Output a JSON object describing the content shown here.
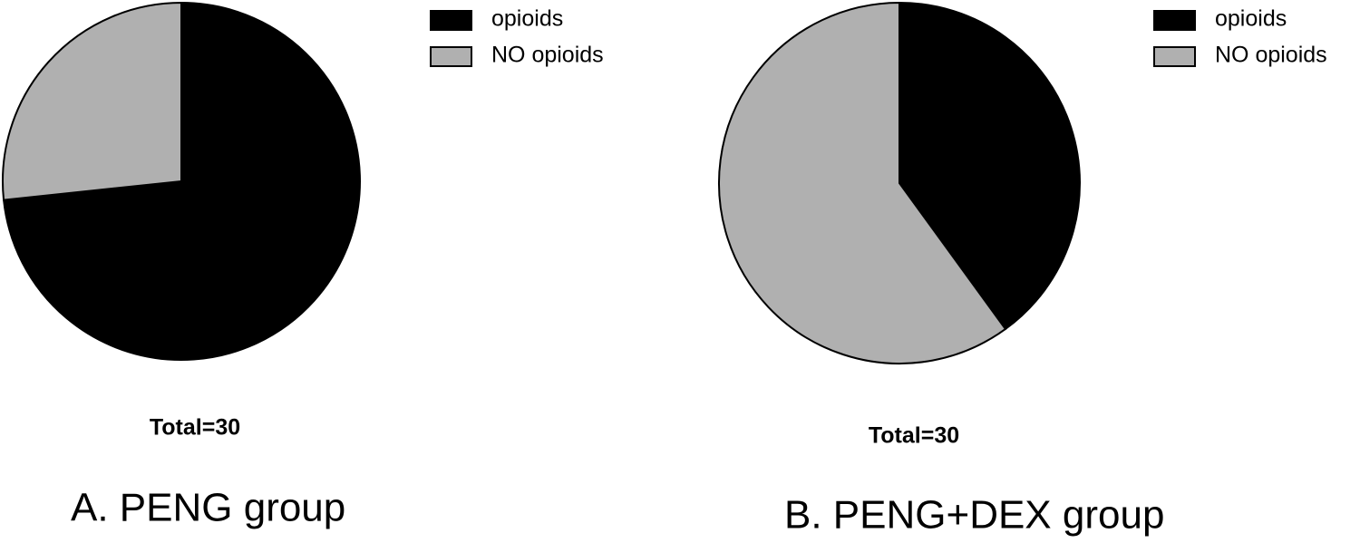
{
  "chart_data": [
    {
      "type": "pie",
      "title": "A. PENG group",
      "annotation": "Total=30",
      "categories": [
        "opioids",
        "NO opioids"
      ],
      "values": [
        22,
        8
      ],
      "colors": [
        "#000000",
        "#b0b0b0"
      ]
    },
    {
      "type": "pie",
      "title": "B. PENG+DEX group",
      "annotation": "Total=30",
      "categories": [
        "opioids",
        "NO opioids"
      ],
      "values": [
        12,
        18
      ],
      "colors": [
        "#000000",
        "#b0b0b0"
      ]
    }
  ]
}
